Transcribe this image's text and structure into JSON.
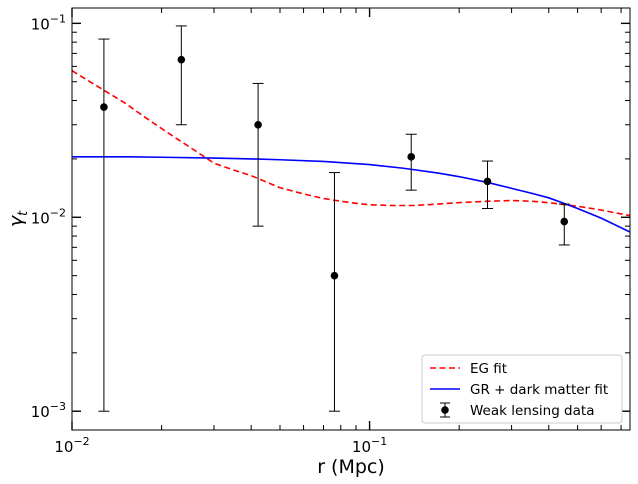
{
  "chart_data": {
    "type": "line",
    "xscale": "log",
    "yscale": "log",
    "xlim": [
      0.01,
      0.75
    ],
    "ylim": [
      0.0008,
      0.12
    ],
    "xlabel": "r (Mpc)",
    "ylabel_base": "γ",
    "ylabel_sub": "t",
    "xticks": [
      {
        "value": 0.01,
        "base": "10",
        "exp": "−2"
      },
      {
        "value": 0.1,
        "base": "10",
        "exp": "−1"
      }
    ],
    "yticks": [
      {
        "value": 0.001,
        "base": "10",
        "exp": "−3"
      },
      {
        "value": 0.01,
        "base": "10",
        "exp": "−2"
      },
      {
        "value": 0.1,
        "base": "10",
        "exp": "−1"
      }
    ],
    "series": [
      {
        "name": "EG fit",
        "kind": "line",
        "style": "dashed",
        "color": "#ff0000",
        "x": [
          0.01,
          0.012,
          0.015,
          0.018,
          0.022,
          0.026,
          0.03,
          0.035,
          0.04,
          0.045,
          0.05,
          0.06,
          0.07,
          0.08,
          0.09,
          0.1,
          0.12,
          0.14,
          0.17,
          0.2,
          0.25,
          0.3,
          0.35,
          0.4,
          0.5,
          0.6,
          0.75
        ],
        "y": [
          0.057,
          0.048,
          0.039,
          0.032,
          0.026,
          0.022,
          0.019,
          0.0175,
          0.0164,
          0.0152,
          0.0142,
          0.0132,
          0.0125,
          0.0121,
          0.0118,
          0.0116,
          0.0115,
          0.0115,
          0.0117,
          0.0119,
          0.0121,
          0.0122,
          0.0121,
          0.0119,
          0.0114,
          0.0109,
          0.0102
        ]
      },
      {
        "name": "GR + dark matter fit",
        "kind": "line",
        "style": "solid",
        "color": "#0000ff",
        "x": [
          0.01,
          0.015,
          0.02,
          0.03,
          0.04,
          0.05,
          0.07,
          0.1,
          0.13,
          0.17,
          0.2,
          0.25,
          0.3,
          0.35,
          0.4,
          0.45,
          0.5,
          0.6,
          0.75
        ],
        "y": [
          0.0205,
          0.0205,
          0.0204,
          0.0202,
          0.02,
          0.0198,
          0.0194,
          0.0187,
          0.0179,
          0.0169,
          0.0162,
          0.0151,
          0.0141,
          0.0133,
          0.0126,
          0.0118,
          0.0111,
          0.0099,
          0.0084
        ]
      },
      {
        "name": "Weak lensing data",
        "kind": "errorbar",
        "color": "#000000",
        "points": [
          {
            "x": 0.0128,
            "y": 0.037,
            "ylo": 0.001,
            "yhi": 0.083
          },
          {
            "x": 0.0233,
            "y": 0.065,
            "ylo": 0.03,
            "yhi": 0.097
          },
          {
            "x": 0.0422,
            "y": 0.03,
            "ylo": 0.009,
            "yhi": 0.049
          },
          {
            "x": 0.0762,
            "y": 0.005,
            "ylo": 0.001,
            "yhi": 0.017
          },
          {
            "x": 0.138,
            "y": 0.0205,
            "ylo": 0.0138,
            "yhi": 0.0268
          },
          {
            "x": 0.249,
            "y": 0.0153,
            "ylo": 0.0111,
            "yhi": 0.0195
          },
          {
            "x": 0.451,
            "y": 0.0095,
            "ylo": 0.0072,
            "yhi": 0.0117
          }
        ]
      }
    ],
    "legend_position": "lower-right",
    "grid": false
  }
}
